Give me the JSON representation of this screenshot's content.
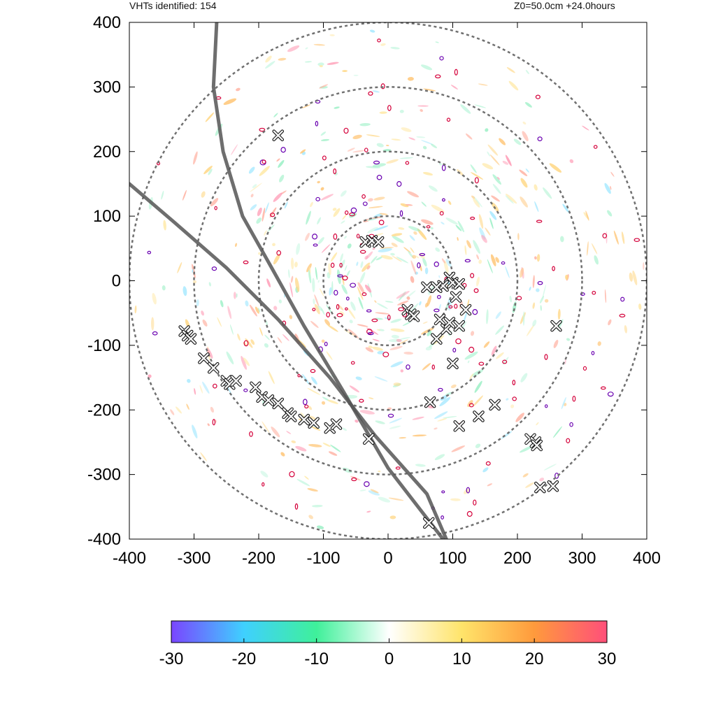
{
  "header": {
    "left_text": "VHTs identified: 154",
    "right_text": "Z0=50.0cm  +24.0hours"
  },
  "colors": {
    "ring": "#707070",
    "track": "#555555",
    "contour_red": "#d4003a",
    "contour_purple": "#6a00b0",
    "cbar_stops": [
      "#7a45ff",
      "#3fd0ff",
      "#3ff09a",
      "#ffffff",
      "#ffe46a",
      "#ff9a3c",
      "#ff4f7a"
    ]
  },
  "chart_data": {
    "type": "scatter",
    "xlim": [
      -400,
      400
    ],
    "ylim": [
      -400,
      400
    ],
    "x_ticks": [
      "-400",
      "-300",
      "-200",
      "-100",
      "0",
      "100",
      "200",
      "300",
      "400"
    ],
    "y_ticks": [
      "400",
      "300",
      "200",
      "100",
      "0",
      "-100",
      "-200",
      "-300",
      "-400"
    ],
    "range_rings": [
      100,
      200,
      300,
      400
    ],
    "grid": false,
    "tracks": [
      [
        [
          -265,
          400
        ],
        [
          -270,
          300
        ],
        [
          -255,
          200
        ],
        [
          -225,
          100
        ],
        [
          -180,
          20
        ],
        [
          -130,
          -70
        ],
        [
          -70,
          -170
        ],
        [
          0,
          -290
        ],
        [
          85,
          -400
        ]
      ],
      [
        [
          -400,
          150
        ],
        [
          -330,
          90
        ],
        [
          -250,
          20
        ],
        [
          -170,
          -60
        ],
        [
          -90,
          -150
        ],
        [
          -20,
          -240
        ],
        [
          60,
          -330
        ],
        [
          90,
          -400
        ]
      ]
    ],
    "vht_markers": [
      [
        -170,
        225
      ],
      [
        -35,
        60
      ],
      [
        -25,
        62
      ],
      [
        -15,
        60
      ],
      [
        95,
        5
      ],
      [
        100,
        -3
      ],
      [
        85,
        -8
      ],
      [
        110,
        -5
      ],
      [
        60,
        -10
      ],
      [
        75,
        -10
      ],
      [
        105,
        -25
      ],
      [
        30,
        -45
      ],
      [
        35,
        -52
      ],
      [
        40,
        -55
      ],
      [
        80,
        -60
      ],
      [
        90,
        -75
      ],
      [
        95,
        -65
      ],
      [
        110,
        -70
      ],
      [
        120,
        -45
      ],
      [
        75,
        -90
      ],
      [
        100,
        -128
      ],
      [
        260,
        -70
      ],
      [
        -315,
        -78
      ],
      [
        -310,
        -85
      ],
      [
        -305,
        -90
      ],
      [
        -285,
        -120
      ],
      [
        -270,
        -135
      ],
      [
        -250,
        -155
      ],
      [
        -245,
        -160
      ],
      [
        -235,
        -155
      ],
      [
        -205,
        -165
      ],
      [
        -195,
        -180
      ],
      [
        -185,
        -185
      ],
      [
        -170,
        -190
      ],
      [
        -155,
        -205
      ],
      [
        -150,
        -210
      ],
      [
        -130,
        -215
      ],
      [
        -115,
        -220
      ],
      [
        -90,
        -228
      ],
      [
        -80,
        -222
      ],
      [
        -30,
        -245
      ],
      [
        65,
        -188
      ],
      [
        110,
        -225
      ],
      [
        140,
        -210
      ],
      [
        165,
        -192
      ],
      [
        220,
        -245
      ],
      [
        228,
        -250
      ],
      [
        230,
        -255
      ],
      [
        235,
        -320
      ],
      [
        255,
        -318
      ],
      [
        63,
        -375
      ]
    ],
    "colorbar": {
      "range": [
        -30,
        30
      ],
      "ticks": [
        "-30",
        "-20",
        "-10",
        "0",
        "10",
        "20",
        "30"
      ]
    }
  }
}
